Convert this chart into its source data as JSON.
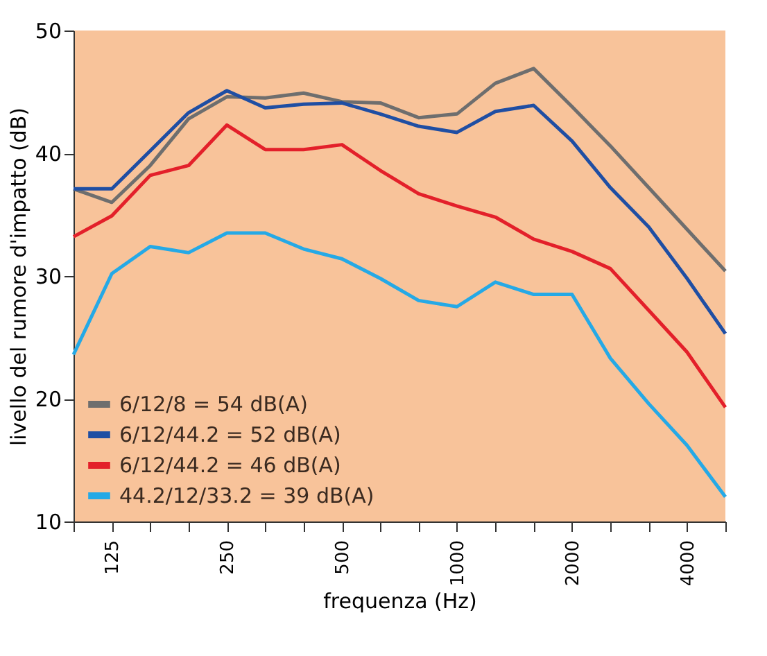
{
  "chart_data": {
    "type": "line",
    "xlabel": "frequenza (Hz)",
    "ylabel": "livello del rumore d'impatto (dB)",
    "categories": [
      null,
      "125",
      null,
      null,
      "250",
      null,
      null,
      "500",
      null,
      null,
      "1000",
      null,
      null,
      "2000",
      null,
      null,
      "4000",
      null
    ],
    "series": [
      {
        "name": "6/12/8 = 54 dB(A)",
        "color": "#6e6e6e",
        "values": [
          37.1,
          36.0,
          39.0,
          42.8,
          44.6,
          44.5,
          44.9,
          44.2,
          44.1,
          42.9,
          43.2,
          45.7,
          46.9,
          43.8,
          40.6,
          37.2,
          33.8,
          30.4
        ]
      },
      {
        "name": "6/12/44.2 = 52 dB(A)",
        "color": "#1f4ea3",
        "values": [
          37.1,
          37.1,
          40.2,
          43.3,
          45.1,
          43.7,
          44.0,
          44.1,
          43.2,
          42.2,
          41.7,
          43.4,
          43.9,
          41.0,
          37.2,
          34.0,
          29.8,
          25.3
        ]
      },
      {
        "name": "6/12/44.2 = 46 dB(A)",
        "color": "#e3202a",
        "values": [
          33.2,
          34.9,
          38.2,
          39.0,
          42.3,
          40.3,
          40.3,
          40.7,
          38.6,
          36.7,
          35.7,
          34.8,
          33.0,
          32.0,
          30.6,
          27.2,
          23.8,
          19.3
        ]
      },
      {
        "name": "44.2/12/33.2 = 39 dB(A)",
        "color": "#25a9e6",
        "values": [
          23.6,
          30.2,
          32.4,
          31.9,
          33.5,
          33.5,
          32.2,
          31.4,
          29.8,
          28.0,
          27.5,
          29.5,
          28.5,
          28.5,
          23.3,
          19.6,
          16.2,
          12.0
        ]
      }
    ],
    "ylim": [
      10,
      50
    ],
    "yticks": [
      10,
      20,
      30,
      40,
      50
    ],
    "grid": false,
    "legend": "bottom left",
    "marker": "none",
    "line_style": "solid"
  }
}
